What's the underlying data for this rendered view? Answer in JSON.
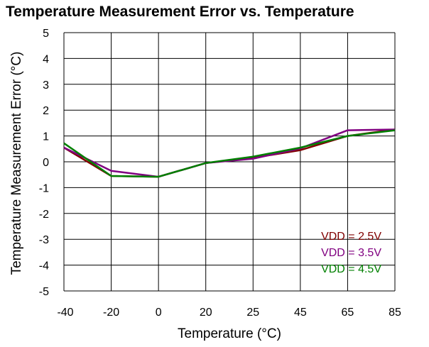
{
  "chart_data": {
    "type": "line",
    "title": "Temperature Measurement Error vs. Temperature",
    "xlabel": "Temperature (°C)",
    "ylabel": "Temperature Measurement Error (°C)",
    "categories": [
      "-40",
      "-20",
      "0",
      "20",
      "25",
      "45",
      "65",
      "85"
    ],
    "ylim": [
      -5,
      5
    ],
    "yticks": [
      5,
      4,
      3,
      2,
      1,
      0,
      -1,
      -2,
      -3,
      -4,
      -5
    ],
    "grid": true,
    "legend_position": "bottom-right",
    "series": [
      {
        "name": "VDD = 2.5V",
        "color": "#800000",
        "values": [
          0.55,
          -0.55,
          -0.58,
          -0.05,
          0.15,
          0.45,
          1.0,
          1.25
        ]
      },
      {
        "name": "VDD = 3.5V",
        "color": "#800080",
        "values": [
          0.55,
          -0.35,
          -0.58,
          -0.05,
          0.12,
          0.52,
          1.22,
          1.25
        ]
      },
      {
        "name": "VDD = 4.5V",
        "color": "#008000",
        "values": [
          0.72,
          -0.55,
          -0.58,
          -0.05,
          0.2,
          0.55,
          1.0,
          1.22
        ]
      }
    ]
  }
}
